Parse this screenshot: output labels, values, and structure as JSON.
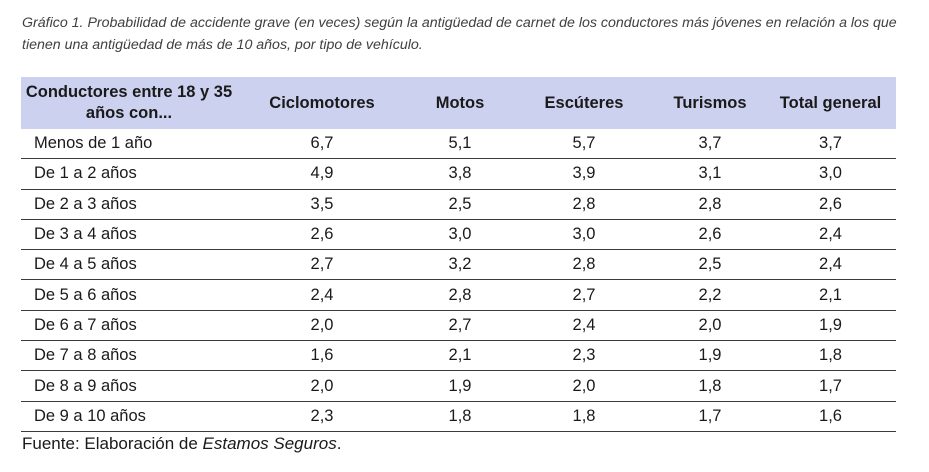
{
  "caption": "Gráfico 1. Probabilidad de accidente grave (en veces) según la antigüedad de carnet de los conductores más jóvenes en relación a los que tienen una antigüedad de más de 10 años, por tipo de vehículo.",
  "table": {
    "headers": [
      "Conductores entre 18 y 35 años con...",
      "Ciclomotores",
      "Motos",
      "Escúteres",
      "Turismos",
      "Total general"
    ],
    "rows": [
      [
        "Menos de 1 año",
        "6,7",
        "5,1",
        "5,7",
        "3,7",
        "3,7"
      ],
      [
        "De 1 a 2 años",
        "4,9",
        "3,8",
        "3,9",
        "3,1",
        "3,0"
      ],
      [
        "De 2 a 3 años",
        "3,5",
        "2,5",
        "2,8",
        "2,8",
        "2,6"
      ],
      [
        "De 3 a 4 años",
        "2,6",
        "3,0",
        "3,0",
        "2,6",
        "2,4"
      ],
      [
        "De 4 a 5 años",
        "2,7",
        "3,2",
        "2,8",
        "2,5",
        "2,4"
      ],
      [
        "De 5 a 6 años",
        "2,4",
        "2,8",
        "2,7",
        "2,2",
        "2,1"
      ],
      [
        "De 6 a 7 años",
        "2,0",
        "2,7",
        "2,4",
        "2,0",
        "1,9"
      ],
      [
        "De 7 a 8 años",
        "1,6",
        "2,1",
        "2,3",
        "1,9",
        "1,8"
      ],
      [
        "De 8 a 9 años",
        "2,0",
        "1,9",
        "2,0",
        "1,8",
        "1,7"
      ],
      [
        "De 9 a 10 años",
        "2,3",
        "1,8",
        "1,8",
        "1,7",
        "1,6"
      ]
    ]
  },
  "source": {
    "prefix": "Fuente",
    "middle": ": Elaboración de ",
    "name": "Estamos Seguros",
    "suffix": "."
  },
  "colors": {
    "header_bg": "#cdd1f0",
    "row_rule": "#3a3a3a",
    "caption_text": "#404040"
  }
}
